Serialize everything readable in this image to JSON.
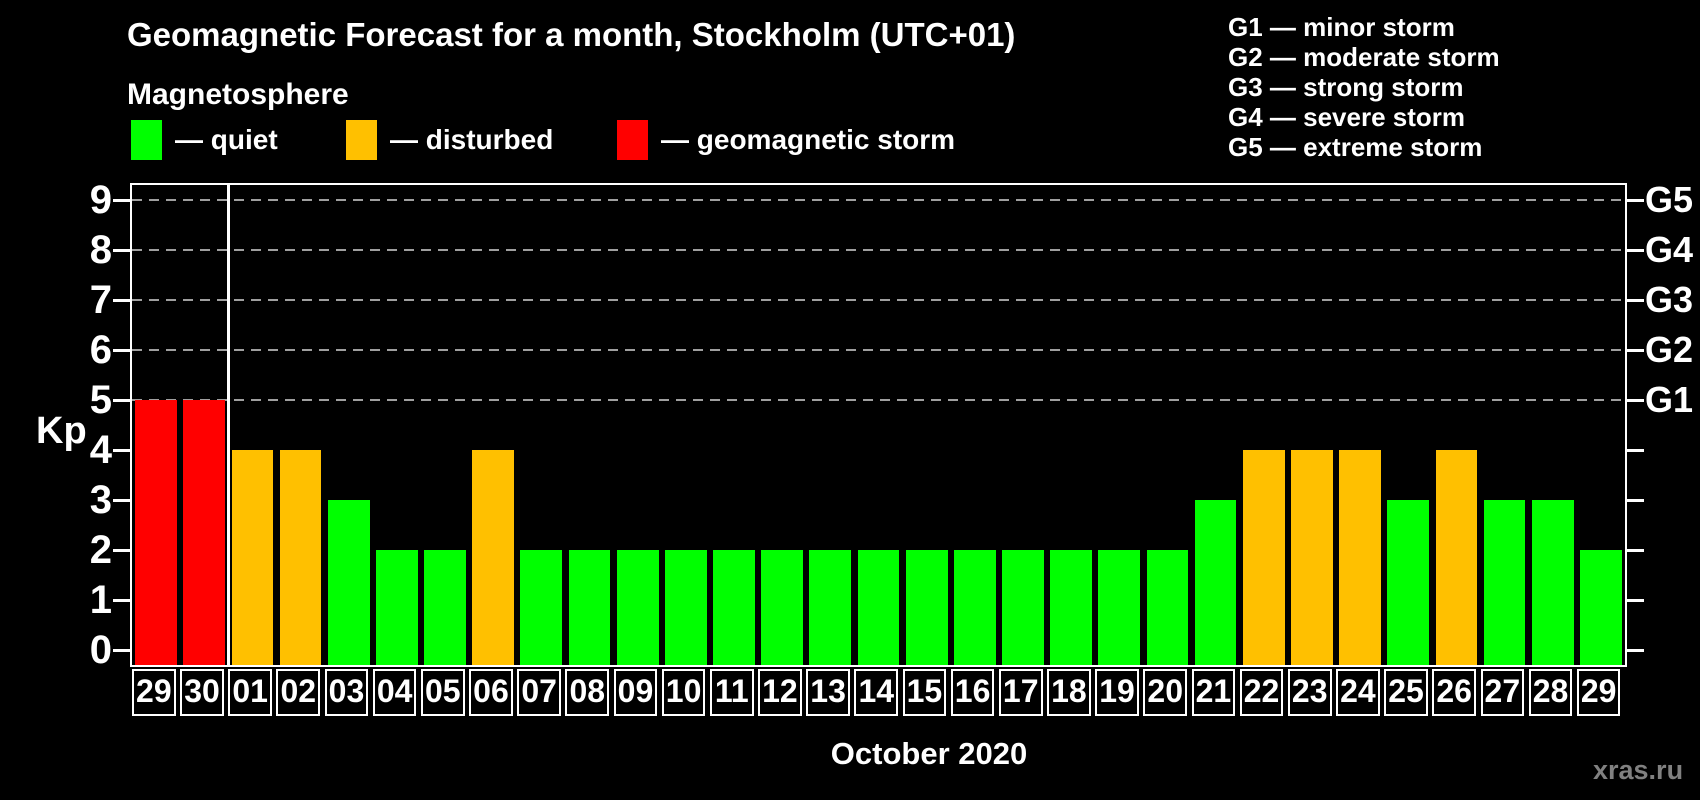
{
  "header": {
    "title": "Geomagnetic Forecast for a month, Stockholm (UTC+01)",
    "subtitle": "Magnetosphere"
  },
  "legend": {
    "items": [
      {
        "name": "quiet",
        "label": "— quiet",
        "color": "#00ff00"
      },
      {
        "name": "disturbed",
        "label": "— disturbed",
        "color": "#ffc000"
      },
      {
        "name": "geomagnetic-storm",
        "label": "— geomagnetic storm",
        "color": "#ff0000"
      }
    ]
  },
  "storm_scale": {
    "items": [
      {
        "label": "G1 — minor storm"
      },
      {
        "label": "G2 — moderate storm"
      },
      {
        "label": "G3 — strong storm"
      },
      {
        "label": "G4 — severe storm"
      },
      {
        "label": "G5 — extreme storm"
      }
    ]
  },
  "axes": {
    "kp_label": "Kp"
  },
  "footer": {
    "xlabel": "October 2020",
    "watermark": "xras.ru"
  },
  "chart_data": {
    "type": "bar",
    "title": "Geomagnetic Forecast for a month, Stockholm (UTC+01)",
    "subtitle": "Magnetosphere",
    "ylabel": "Kp",
    "xlabel": "October 2020",
    "ylim": [
      0,
      9
    ],
    "yticks": [
      0,
      1,
      2,
      3,
      4,
      5,
      6,
      7,
      8,
      9
    ],
    "gridlines": [
      5,
      6,
      7,
      8,
      9
    ],
    "grid": "dashed horizontal at Kp 5-9 only",
    "legend_position": "top-left",
    "right_axis_labels": [
      {
        "value": 5,
        "label": "G1"
      },
      {
        "value": 6,
        "label": "G2"
      },
      {
        "value": 7,
        "label": "G3"
      },
      {
        "value": 8,
        "label": "G4"
      },
      {
        "value": 9,
        "label": "G5"
      }
    ],
    "colors": {
      "quiet": "#00ff00",
      "disturbed": "#ffc000",
      "storm": "#ff0000"
    },
    "month_separator_after_index": 1,
    "categories": [
      "29",
      "30",
      "01",
      "02",
      "03",
      "04",
      "05",
      "06",
      "07",
      "08",
      "09",
      "10",
      "11",
      "12",
      "13",
      "14",
      "15",
      "16",
      "17",
      "18",
      "19",
      "20",
      "21",
      "22",
      "23",
      "24",
      "25",
      "26",
      "27",
      "28",
      "29"
    ],
    "values": [
      5,
      5,
      4,
      4,
      3,
      2,
      2,
      4,
      2,
      2,
      2,
      2,
      2,
      2,
      2,
      2,
      2,
      2,
      2,
      2,
      2,
      2,
      3,
      4,
      4,
      4,
      3,
      4,
      3,
      3,
      2
    ],
    "statuses": [
      "storm",
      "storm",
      "disturbed",
      "disturbed",
      "quiet",
      "quiet",
      "quiet",
      "disturbed",
      "quiet",
      "quiet",
      "quiet",
      "quiet",
      "quiet",
      "quiet",
      "quiet",
      "quiet",
      "quiet",
      "quiet",
      "quiet",
      "quiet",
      "quiet",
      "quiet",
      "quiet",
      "disturbed",
      "disturbed",
      "disturbed",
      "quiet",
      "disturbed",
      "quiet",
      "quiet",
      "quiet"
    ]
  }
}
